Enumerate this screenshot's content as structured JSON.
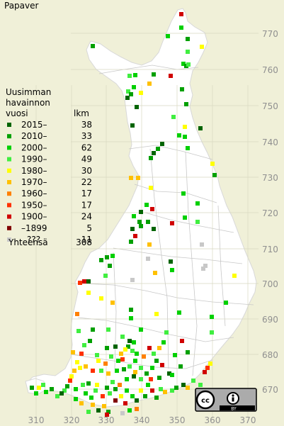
{
  "title": "Papaver",
  "legend": {
    "heading": [
      "Uusimman",
      "havainnon"
    ],
    "year_label": "vuosi",
    "count_label": "lkm",
    "entries": [
      {
        "label": "2015–",
        "count": "38",
        "color": "#006400"
      },
      {
        "label": "2010–",
        "count": "33",
        "color": "#00a000"
      },
      {
        "label": "2000–",
        "count": "62",
        "color": "#00d000"
      },
      {
        "label": "1990–",
        "count": "49",
        "color": "#40ee40"
      },
      {
        "label": "1980–",
        "count": "30",
        "color": "#ffff00"
      },
      {
        "label": "1970–",
        "count": "22",
        "color": "#ffc000"
      },
      {
        "label": "1960–",
        "count": "17",
        "color": "#ff8000"
      },
      {
        "label": "1950–",
        "count": "17",
        "color": "#ff3000"
      },
      {
        "label": "1900–",
        "count": "24",
        "color": "#d00000"
      },
      {
        "label": "–1899",
        "count": "5",
        "color": "#800000"
      },
      {
        "label": "???",
        "count": "11",
        "color": "#c8c8c8"
      }
    ],
    "total_label": "Yhteensä",
    "total_count": "308"
  },
  "grid_labels": {
    "northing": [
      "770",
      "760",
      "750",
      "740",
      "730",
      "720",
      "710",
      "700",
      "690",
      "680",
      "670"
    ],
    "easting": [
      "310",
      "320",
      "330",
      "340",
      "350",
      "360",
      "370"
    ]
  },
  "license_badge": {
    "icons": [
      "cc-icon",
      "attribution-icon"
    ],
    "text": "BY"
  },
  "colors": {
    "background": "#f0f0d8",
    "land": "#ffffff",
    "grid": "#d8d8c0",
    "text": "#000000",
    "label": "#909090"
  }
}
